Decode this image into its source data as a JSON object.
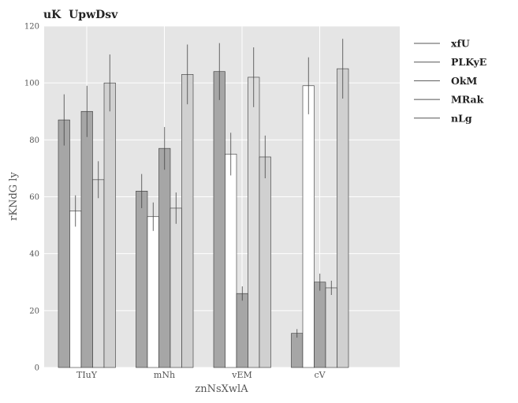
{
  "chart_data": {
    "type": "bar",
    "title": "uK  UpwDsv",
    "xlabel": "znNsXwlA",
    "ylabel": "rKNdG ly",
    "ylim": [
      0,
      120
    ],
    "yticks": [
      0,
      20,
      40,
      60,
      80,
      100,
      120
    ],
    "categories": [
      "TIuY",
      "mNh",
      "vEM",
      "cV"
    ],
    "grid": true,
    "legend_position": "right",
    "series": [
      {
        "name": "xfU",
        "color": "#a6a6a6",
        "values": [
          87,
          62,
          104,
          12
        ],
        "errors": [
          9,
          6,
          10,
          1.5
        ]
      },
      {
        "name": "PLKyE",
        "color": "#ffffff",
        "values": [
          55,
          53,
          75,
          99
        ],
        "errors": [
          5.5,
          5,
          7.5,
          10
        ]
      },
      {
        "name": "OkM",
        "color": "#a6a6a6",
        "values": [
          90,
          77,
          26,
          30
        ],
        "errors": [
          9,
          7.5,
          2.5,
          3
        ]
      },
      {
        "name": "MRak",
        "color": "#dcdcdc",
        "values": [
          66,
          56,
          102,
          28
        ],
        "errors": [
          6.5,
          5.5,
          10.5,
          2.5
        ]
      },
      {
        "name": "nLg",
        "color": "#d0d0d0",
        "values": [
          100,
          103,
          74,
          105
        ],
        "errors": [
          10,
          10.5,
          7.5,
          10.5
        ]
      }
    ]
  }
}
